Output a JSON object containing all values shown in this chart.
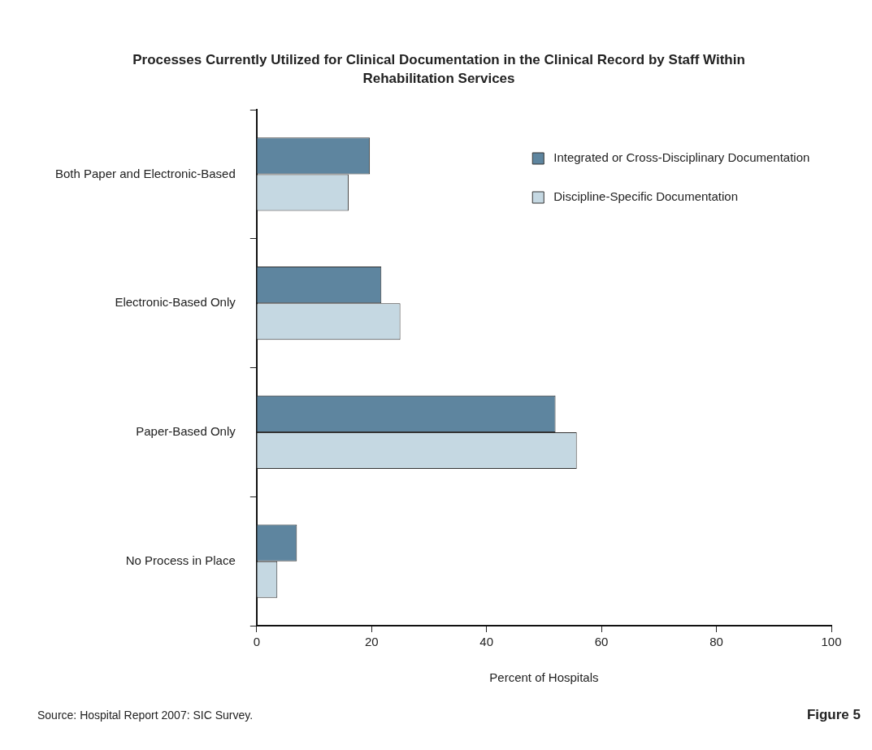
{
  "chart_data": {
    "type": "bar",
    "orientation": "horizontal",
    "title": "Processes Currently Utilized for Clinical Documentation in the Clinical Record by Staff Within Rehabilitation Services",
    "xlabel": "Percent of Hospitals",
    "categories": [
      "Both Paper and Electronic-Based",
      "Electronic-Based Only",
      "Paper-Based Only",
      "No Process in Place"
    ],
    "series": [
      {
        "name": "Integrated or Cross-Disciplinary Documentation",
        "color": "#5e859f",
        "values": [
          19.7,
          21.7,
          52.0,
          7.0
        ]
      },
      {
        "name": "Discipline-Specific Documentation",
        "color": "#c5d8e2",
        "values": [
          16.0,
          25.0,
          55.7,
          3.6
        ]
      }
    ],
    "xlim": [
      0,
      100
    ],
    "xticks": [
      0,
      20,
      40,
      60,
      80,
      100
    ],
    "grid": false,
    "legend": "top right",
    "annotations": [
      "Source: Hospital Report 2007: SIC Survey.",
      "Figure 5"
    ]
  }
}
